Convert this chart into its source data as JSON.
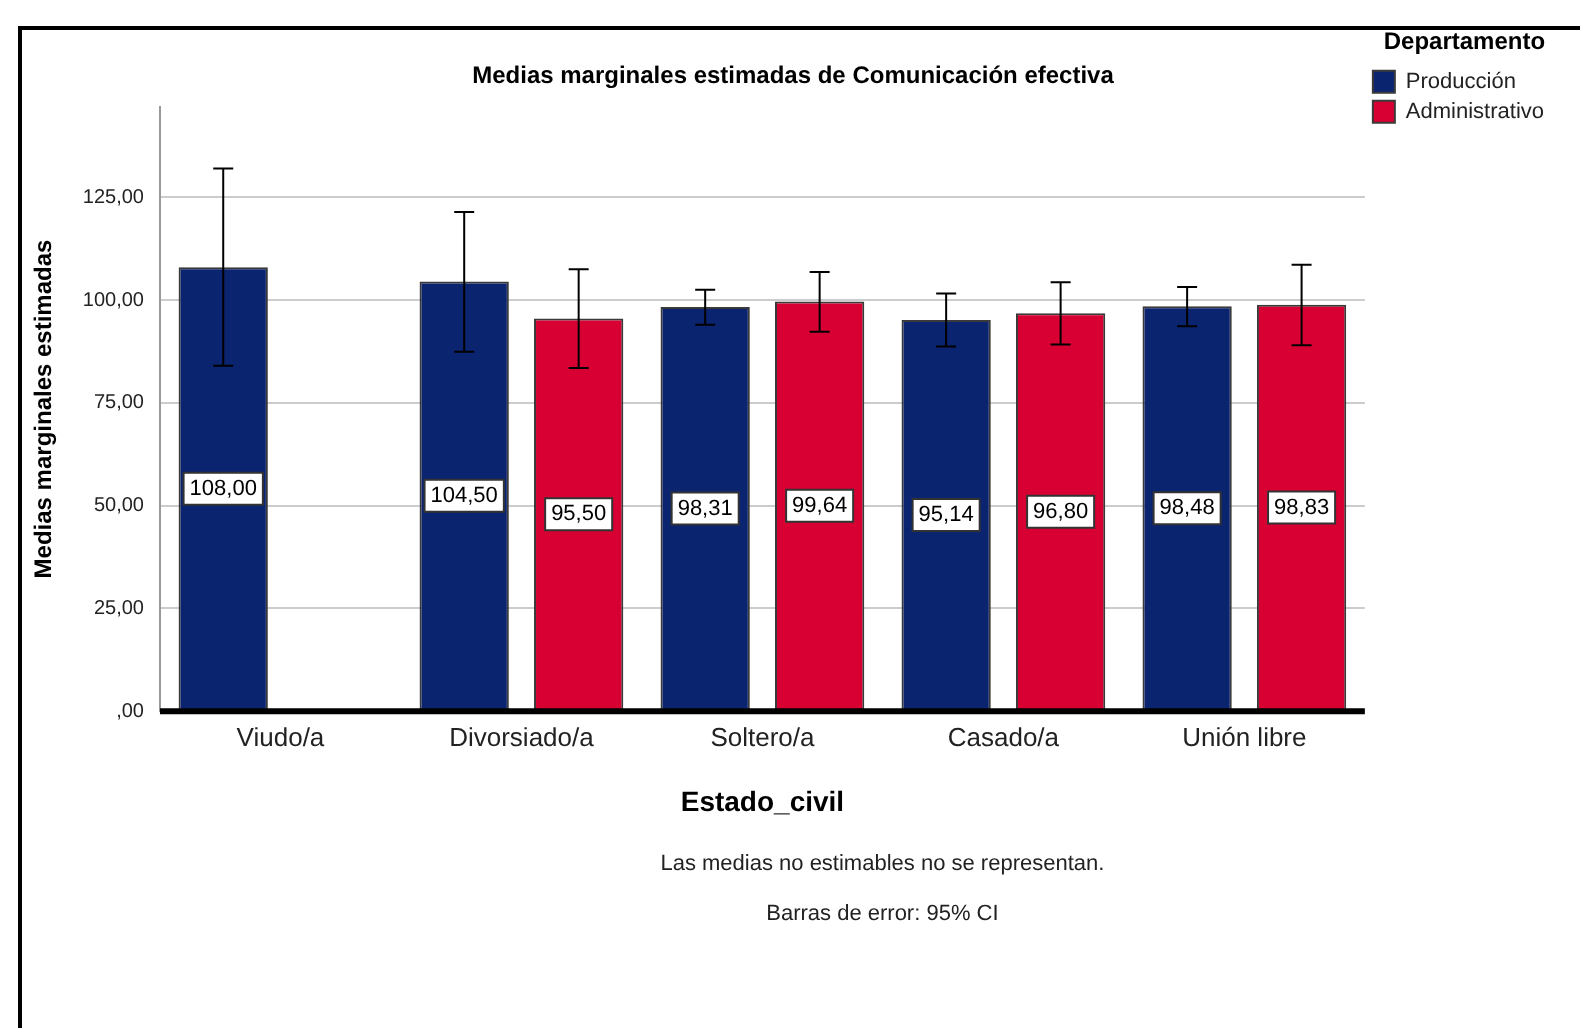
{
  "chart_data": {
    "type": "bar",
    "title": "Medias marginales estimadas de Comunicación efectiva",
    "xlabel": "Estado_civil",
    "ylabel": "Medias marginales estimadas",
    "legend_title": "Departamento",
    "categories": [
      "Viudo/a",
      "Divorsiado/a",
      "Soltero/a",
      "Casado/a",
      "Unión libre"
    ],
    "series": [
      {
        "name": "Producción",
        "color": "#0b2470",
        "values": [
          108,
          104.5,
          98.31,
          95.14,
          98.48
        ],
        "value_labels": [
          "108,00",
          "104,50",
          "98,31",
          "95,14",
          "98,48"
        ],
        "errors": [
          [
            84,
            132
          ],
          [
            87.4,
            121.4
          ],
          [
            94,
            102.5
          ],
          [
            88.7,
            101.6
          ],
          [
            93.6,
            103.2
          ]
        ]
      },
      {
        "name": "Administrativo",
        "color": "#d80032",
        "values": [
          null,
          95.5,
          99.64,
          96.8,
          98.83
        ],
        "value_labels": [
          null,
          "95,50",
          "99,64",
          "96,80",
          "98,83"
        ],
        "errors": [
          null,
          [
            83.5,
            107.5
          ],
          [
            92.3,
            106.8
          ],
          [
            89.2,
            104.3
          ],
          [
            89,
            108.6
          ]
        ]
      }
    ],
    "ylim": [
      0,
      147
    ],
    "yticks": [
      {
        "value": 0,
        "label": ",00"
      },
      {
        "value": 25,
        "label": "25,00"
      },
      {
        "value": 50,
        "label": "50,00"
      },
      {
        "value": 75,
        "label": "75,00"
      },
      {
        "value": 100,
        "label": "100,00"
      },
      {
        "value": 125,
        "label": "125,00"
      }
    ],
    "grid": "y",
    "legend": "top right",
    "annotations": [
      "Las medias no estimables no se representan.",
      "Barras de error: 95% CI"
    ]
  }
}
